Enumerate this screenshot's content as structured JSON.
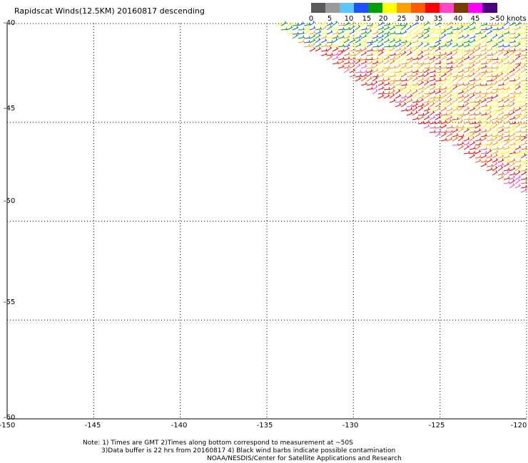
{
  "title": "Rapidscat Winds(12.5KM) 20160817 descending",
  "colorbar": {
    "colors": [
      "#5a5a5a",
      "#9a9a9a",
      "#5ac8ff",
      "#1e50ff",
      "#00a000",
      "#ffff00",
      "#ffa000",
      "#ff5a00",
      "#ff0000",
      "#ff46c8",
      "#7a3c00",
      "#ff00ff",
      "#4b0082"
    ],
    "labels": [
      "0",
      "5",
      "10",
      "15",
      "20",
      "25",
      "30",
      "35",
      "40",
      "45",
      ">50 knots"
    ]
  },
  "map": {
    "x_ticks": [
      "-150",
      "-145",
      "-140",
      "-135",
      "-130",
      "-125",
      "-120"
    ],
    "y_ticks": [
      "-40",
      "-45",
      "-50",
      "-55",
      "-60"
    ],
    "lon_range": [
      -150,
      -120
    ],
    "lat_range": [
      -60,
      -40
    ],
    "swath_edge": [
      [
        -135,
        -40
      ],
      [
        -120,
        -49
      ]
    ]
  },
  "notes": {
    "line1": "Note: 1) Times are GMT 2)Times along bottom correspond to measurement at ~50S",
    "line2": "3)Data buffer is 22 hrs from 20160817 4) Black wind barbs indicate possible contamination",
    "line3": "NOAA/NESDIS/Center for Satellite Applications and Research"
  }
}
